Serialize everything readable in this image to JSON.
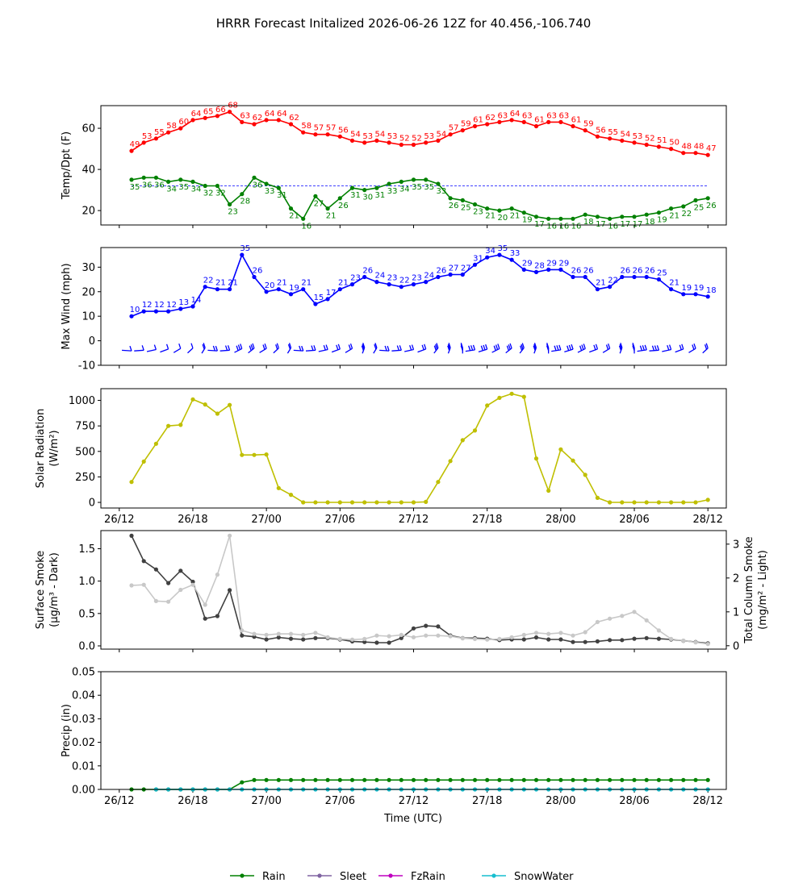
{
  "figure": {
    "title": "HRRR Forecast Initalized 2026-06-26 12Z for 40.456,-106.740",
    "xlabel": "Time (UTC)",
    "x_ticks": [
      "26/12",
      "26/18",
      "27/00",
      "27/06",
      "27/12",
      "27/18",
      "28/00",
      "28/06",
      "28/12"
    ]
  },
  "legend": {
    "placement": "bottom-center",
    "items": [
      {
        "label": "Rain",
        "color": "#008000"
      },
      {
        "label": "Sleet",
        "color": "#8064a2"
      },
      {
        "label": "FzRain",
        "color": "#bf00bf"
      },
      {
        "label": "SnowWater",
        "color": "#17becf"
      }
    ]
  },
  "chart_data": [
    {
      "type": "line",
      "ylabel": "Temp/Dpt (F)",
      "ylim": [
        13,
        71
      ],
      "yticks": [
        20,
        40,
        60
      ],
      "x_unit": "hours since 2026-06-26 12Z",
      "x_start": 1,
      "reference_line": {
        "y": 32,
        "color": "#0000ff",
        "style": "dashed"
      },
      "series": [
        {
          "color": "#ff0000",
          "label_position": "above",
          "values": [
            49,
            53,
            55,
            58,
            60,
            64,
            65,
            66,
            68,
            63,
            62,
            64,
            64,
            62,
            58,
            57,
            57,
            56,
            54,
            53,
            54,
            53,
            52,
            52,
            53,
            54,
            57,
            59,
            61,
            62,
            63,
            64,
            63,
            61,
            63,
            63,
            61,
            59,
            56,
            55,
            54,
            53,
            52,
            51,
            50,
            48,
            48,
            47
          ]
        },
        {
          "color": "#008000",
          "label_position": "below",
          "values": [
            35,
            36,
            36,
            34,
            35,
            34,
            32,
            32,
            23,
            28,
            36,
            33,
            31,
            21,
            16,
            27,
            21,
            26,
            31,
            30,
            31,
            33,
            34,
            35,
            35,
            33,
            26,
            25,
            23,
            21,
            20,
            21,
            19,
            17,
            16,
            16,
            16,
            18,
            17,
            16,
            17,
            17,
            18,
            19,
            21,
            22,
            25,
            26
          ]
        }
      ]
    },
    {
      "type": "line",
      "ylabel": "Max Wind (mph)",
      "ylim": [
        -10,
        38
      ],
      "yticks": [
        -10,
        0,
        10,
        20,
        30
      ],
      "x_start": 1,
      "wind_barbs": {
        "color": "#0000ff",
        "y": -4
      },
      "series": [
        {
          "color": "#0000ff",
          "label_position": "above",
          "values": [
            10,
            12,
            12,
            12,
            13,
            14,
            22,
            21,
            21,
            35,
            26,
            20,
            21,
            19,
            21,
            15,
            17,
            21,
            23,
            26,
            24,
            23,
            22,
            23,
            24,
            26,
            27,
            27,
            31,
            34,
            35,
            33,
            29,
            28,
            29,
            29,
            26,
            26,
            21,
            22,
            26,
            26,
            26,
            25,
            21,
            19,
            19,
            18
          ]
        }
      ]
    },
    {
      "type": "line",
      "ylabel": "Solar Radiation (W/m²)",
      "ylabel_lines": [
        "Solar Radiation",
        "(W/m²)"
      ],
      "ylim": [
        -55,
        1115
      ],
      "yticks": [
        0,
        250,
        500,
        750,
        1000
      ],
      "x_start": 1,
      "series": [
        {
          "color": "#bfbf00",
          "values": [
            200,
            400,
            575,
            750,
            760,
            1010,
            960,
            870,
            955,
            465,
            465,
            470,
            140,
            75,
            0,
            0,
            0,
            0,
            0,
            0,
            0,
            0,
            0,
            0,
            5,
            200,
            405,
            610,
            705,
            950,
            1025,
            1065,
            1035,
            430,
            115,
            520,
            410,
            270,
            45,
            0,
            0,
            0,
            0,
            0,
            0,
            0,
            0,
            25
          ]
        }
      ]
    },
    {
      "type": "line",
      "ylabel": "Surface Smoke (µg/m³ - Dark)",
      "ylabel_lines": [
        "Surface Smoke",
        "(µg/m³ - Dark)"
      ],
      "ylabel_right": "Total Column Smoke (mg/m² - Light)",
      "ylabel_right_lines": [
        "Total Column Smoke",
        "(mg/m² - Light)"
      ],
      "ylim": [
        -0.05,
        1.78
      ],
      "yticks": [
        0.0,
        0.5,
        1.0,
        1.5
      ],
      "ylim_right": [
        -0.1,
        3.4
      ],
      "yticks_right": [
        0,
        1,
        2,
        3
      ],
      "x_start": 1,
      "series": [
        {
          "axis": "left",
          "color": "#404040",
          "values": [
            1.7,
            1.31,
            1.18,
            0.97,
            1.16,
            0.99,
            0.42,
            0.46,
            0.86,
            0.16,
            0.14,
            0.1,
            0.13,
            0.11,
            0.1,
            0.12,
            0.12,
            0.1,
            0.07,
            0.06,
            0.05,
            0.05,
            0.12,
            0.27,
            0.31,
            0.3,
            0.16,
            0.12,
            0.12,
            0.11,
            0.09,
            0.1,
            0.1,
            0.13,
            0.1,
            0.1,
            0.06,
            0.06,
            0.07,
            0.09,
            0.09,
            0.11,
            0.12,
            0.11,
            0.1,
            0.08,
            0.06,
            0.04
          ]
        },
        {
          "axis": "right",
          "color": "#c8c8c8",
          "values": [
            1.78,
            1.8,
            1.32,
            1.3,
            1.65,
            1.8,
            1.21,
            2.1,
            3.25,
            0.45,
            0.35,
            0.32,
            0.35,
            0.35,
            0.32,
            0.38,
            0.25,
            0.2,
            0.18,
            0.2,
            0.3,
            0.28,
            0.32,
            0.25,
            0.3,
            0.3,
            0.28,
            0.22,
            0.2,
            0.18,
            0.2,
            0.25,
            0.32,
            0.38,
            0.35,
            0.38,
            0.3,
            0.4,
            0.7,
            0.8,
            0.88,
            1.0,
            0.75,
            0.45,
            0.2,
            0.15,
            0.1,
            0.05
          ]
        }
      ]
    },
    {
      "type": "line",
      "ylabel": "Precip (in)",
      "ylim": [
        0,
        0.05
      ],
      "yticks": [
        0.0,
        0.01,
        0.02,
        0.03,
        0.04,
        0.05
      ],
      "series": [
        {
          "name": "Rain",
          "color": "#008000",
          "x_start": 1,
          "values": [
            0,
            0,
            0,
            0,
            0,
            0,
            0,
            0,
            0,
            0.003,
            0.004,
            0.004,
            0.004,
            0.004,
            0.004,
            0.004,
            0.004,
            0.004,
            0.004,
            0.004,
            0.004,
            0.004,
            0.004,
            0.004,
            0.004,
            0.004,
            0.004,
            0.004,
            0.004,
            0.004,
            0.004,
            0.004,
            0.004,
            0.004,
            0.004,
            0.004,
            0.004,
            0.004,
            0.004,
            0.004,
            0.004,
            0.004,
            0.004,
            0.004,
            0.004,
            0.004,
            0.004,
            0.004
          ]
        },
        {
          "name": "SnowWater",
          "color": "#17becf",
          "x_start": 3,
          "values": [
            0,
            0,
            0,
            0,
            0,
            0,
            0,
            0,
            0,
            0,
            0,
            0,
            0,
            0,
            0,
            0,
            0,
            0,
            0,
            0,
            0,
            0,
            0,
            0,
            0,
            0,
            0,
            0,
            0,
            0,
            0,
            0,
            0,
            0,
            0,
            0,
            0,
            0,
            0,
            0,
            0,
            0,
            0,
            0,
            0,
            0
          ]
        }
      ]
    }
  ]
}
